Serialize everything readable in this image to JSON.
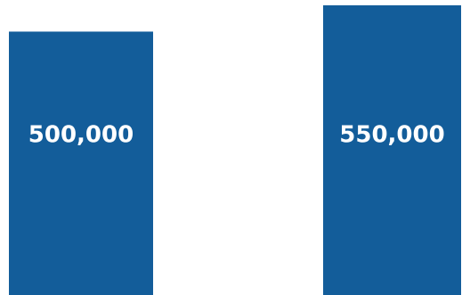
{
  "chart_data": {
    "type": "bar",
    "categories": [
      "",
      ""
    ],
    "values": [
      500000,
      550000
    ],
    "data_labels": [
      "500,000",
      "550,000"
    ],
    "colors": {
      "bar": "#135d9a",
      "label": "#ffffff",
      "background": "#ffffff"
    },
    "ylim": [
      0,
      560000
    ],
    "grid": false,
    "legend": "none"
  }
}
